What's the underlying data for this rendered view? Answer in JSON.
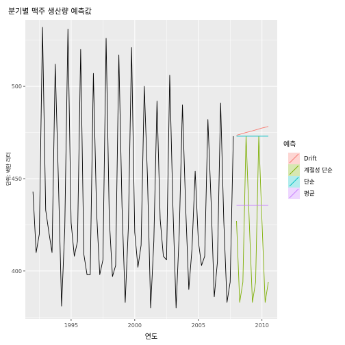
{
  "chart_data": {
    "type": "line",
    "title": "분기별 맥주 생산량 예측값",
    "xlabel": "연도",
    "ylabel": "단위: 백만 리터",
    "xlim": [
      1991.4,
      2011.2
    ],
    "ylim": [
      374,
      536
    ],
    "x_ticks": [
      1995,
      2000,
      2005,
      2010
    ],
    "y_ticks": [
      400,
      450,
      500
    ],
    "grid": true,
    "history": {
      "start": 1992.0,
      "step": 0.25,
      "values": [
        443,
        410,
        420,
        532,
        433,
        421,
        410,
        512,
        449,
        381,
        423,
        531,
        426,
        408,
        416,
        520,
        409,
        398,
        398,
        507,
        432,
        398,
        406,
        526,
        428,
        397,
        403,
        517,
        435,
        383,
        424,
        521,
        421,
        402,
        414,
        500,
        451,
        380,
        416,
        492,
        428,
        408,
        406,
        506,
        435,
        380,
        421,
        490,
        435,
        390,
        412,
        454,
        416,
        403,
        408,
        482,
        438,
        386,
        405,
        491,
        427,
        383,
        394,
        473
      ]
    },
    "legend": {
      "title": "예측",
      "position": "right",
      "items": [
        {
          "key": "drift",
          "label": "Drift",
          "color": "#F8766D"
        },
        {
          "key": "snaive",
          "label": "계절성 단순",
          "color": "#7CAE00"
        },
        {
          "key": "naive",
          "label": "단순",
          "color": "#00BFC4"
        },
        {
          "key": "mean",
          "label": "평균",
          "color": "#C77CFF"
        }
      ]
    },
    "forecasts": {
      "start": 2008.0,
      "step": 0.25,
      "drift": [
        473.5,
        474.0,
        474.5,
        475.0,
        475.4,
        475.9,
        476.4,
        476.9,
        477.4,
        477.8,
        478.3
      ],
      "snaive": [
        427,
        383,
        394,
        473,
        427,
        383,
        394,
        473,
        427,
        383,
        394
      ],
      "naive": [
        473,
        473,
        473,
        473,
        473,
        473,
        473,
        473,
        473,
        473,
        473
      ],
      "mean": [
        435.5,
        435.5,
        435.5,
        435.5,
        435.5,
        435.5,
        435.5,
        435.5,
        435.5,
        435.5,
        435.5
      ]
    },
    "history_color": "#000000"
  }
}
